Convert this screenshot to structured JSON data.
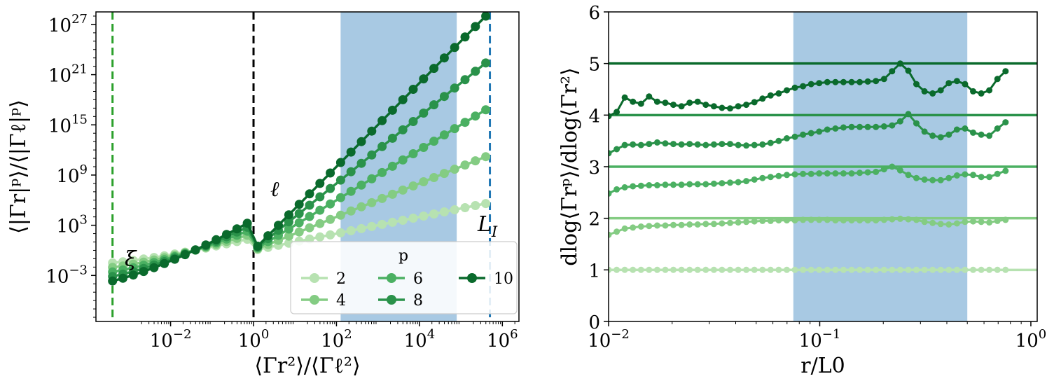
{
  "colors": {
    "p2": "#b7e2b1",
    "p4": "#84cc83",
    "p6": "#4bb062",
    "p8": "#2a924a",
    "p10": "#0a6a2c",
    "band": "#a8c9e3",
    "xi_line": "#2ca02c",
    "ell_line": "#000000",
    "LI_line": "#1f77b4"
  },
  "chart_data": [
    {
      "type": "line",
      "xscale": "log",
      "yscale": "log",
      "xlabel": "⟨Γr²⟩/⟨Γℓ²⟩",
      "ylabel": "⟨|Γr|ᵖ⟩/⟨|Γℓ|ᵖ⟩",
      "xlim_log10": [
        -3.8,
        6.4
      ],
      "ylim_log10": [
        -8.5,
        28.5
      ],
      "xtick_exponents": [
        -2,
        0,
        2,
        4,
        6
      ],
      "ytick_exponents": [
        -3,
        3,
        9,
        15,
        21,
        27
      ],
      "tick_base": "10",
      "shaded_x_log10": [
        2.1,
        4.9
      ],
      "vlines": [
        {
          "name": "xi",
          "x_log10": -3.4,
          "label": "ξ",
          "color": "#2ca02c"
        },
        {
          "name": "ell",
          "x_log10": 0,
          "label": "ℓ",
          "color": "#000000"
        },
        {
          "name": "LI",
          "x_log10": 5.7,
          "label": "L",
          "label_sub": "I",
          "color": "#1f77b4"
        }
      ],
      "legend": {
        "title": "p",
        "position": "lower-right-center",
        "entries": [
          "2",
          "4",
          "6",
          "8",
          "10"
        ]
      },
      "x_log10_range": [
        -3.4,
        5.7
      ],
      "x_log10_step": 0.25,
      "series": [
        {
          "name": "2",
          "p": 2,
          "slope_small": 0.55,
          "slope_large": 1.0
        },
        {
          "name": "4",
          "p": 4,
          "slope_small": 0.72,
          "slope_large": 2.0
        },
        {
          "name": "6",
          "p": 6,
          "slope_small": 0.86,
          "slope_large": 3.0
        },
        {
          "name": "8",
          "p": 8,
          "slope_small": 1.0,
          "slope_large": 4.0
        },
        {
          "name": "10",
          "p": 10,
          "slope_small": 1.14,
          "slope_large": 5.0
        }
      ]
    },
    {
      "type": "line",
      "xscale": "log",
      "xlabel": "r/L0",
      "ylabel": "dlog⟨Γrᵖ⟩/dlog⟨Γr²⟩",
      "xlim_log10": [
        -2,
        0.03
      ],
      "ylim": [
        0,
        6
      ],
      "xtick_exponents": [
        -2,
        -1,
        0
      ],
      "yticks": [
        0,
        1,
        2,
        3,
        4,
        5,
        6
      ],
      "shaded_x": [
        0.075,
        0.5
      ],
      "hlines": [
        1,
        2,
        3,
        4,
        5
      ],
      "x_log10_range": [
        -2,
        -0.12
      ],
      "series": [
        {
          "name": "2",
          "values": [
            1.0,
            1.0,
            1.0,
            1.0,
            1.0,
            1.0,
            1.0,
            1.0,
            1.0,
            1.0,
            1.0,
            1.0,
            1.0,
            1.0,
            1.0,
            1.0,
            1.0,
            1.0,
            1.0,
            1.0,
            1.0,
            1.0,
            1.0,
            1.0,
            1.0,
            1.0,
            1.0,
            1.0,
            1.0,
            1.0,
            1.0,
            1.0,
            1.0,
            1.0,
            1.0,
            1.0,
            1.0,
            1.0,
            1.0,
            1.0,
            1.0,
            1.0,
            1.0,
            1.0,
            1.0,
            1.0,
            1.0,
            1.0,
            1.0,
            1.0
          ]
        },
        {
          "name": "4",
          "values": [
            1.68,
            1.74,
            1.8,
            1.82,
            1.84,
            1.85,
            1.86,
            1.86,
            1.87,
            1.87,
            1.88,
            1.88,
            1.89,
            1.89,
            1.9,
            1.91,
            1.92,
            1.93,
            1.94,
            1.95,
            1.95,
            1.96,
            1.96,
            1.96,
            1.97,
            1.97,
            1.97,
            1.97,
            1.96,
            1.96,
            1.96,
            1.96,
            1.96,
            1.96,
            1.97,
            1.98,
            1.99,
            1.98,
            1.97,
            1.93,
            1.91,
            1.89,
            1.88,
            1.9,
            1.93,
            1.94,
            1.93,
            1.92,
            1.95,
            1.97
          ]
        },
        {
          "name": "6",
          "values": [
            2.48,
            2.56,
            2.6,
            2.62,
            2.63,
            2.64,
            2.64,
            2.65,
            2.65,
            2.65,
            2.66,
            2.66,
            2.66,
            2.67,
            2.68,
            2.69,
            2.7,
            2.72,
            2.75,
            2.78,
            2.8,
            2.82,
            2.84,
            2.85,
            2.86,
            2.86,
            2.87,
            2.87,
            2.87,
            2.87,
            2.87,
            2.88,
            2.89,
            2.9,
            2.95,
            3.0,
            2.93,
            2.84,
            2.78,
            2.75,
            2.74,
            2.74,
            2.78,
            2.83,
            2.85,
            2.84,
            2.8,
            2.8,
            2.86,
            2.92
          ]
        },
        {
          "name": "8",
          "values": [
            3.26,
            3.34,
            3.42,
            3.43,
            3.42,
            3.44,
            3.47,
            3.45,
            3.44,
            3.43,
            3.44,
            3.43,
            3.42,
            3.43,
            3.44,
            3.44,
            3.42,
            3.41,
            3.42,
            3.43,
            3.46,
            3.5,
            3.55,
            3.58,
            3.62,
            3.65,
            3.68,
            3.72,
            3.74,
            3.76,
            3.77,
            3.77,
            3.77,
            3.77,
            3.78,
            3.8,
            3.88,
            4.02,
            3.84,
            3.68,
            3.6,
            3.57,
            3.62,
            3.72,
            3.74,
            3.66,
            3.62,
            3.6,
            3.74,
            3.86
          ]
        },
        {
          "name": "10",
          "values": [
            3.98,
            4.06,
            4.34,
            4.26,
            4.22,
            4.36,
            4.26,
            4.24,
            4.2,
            4.17,
            4.24,
            4.26,
            4.2,
            4.17,
            4.14,
            4.13,
            4.17,
            4.2,
            4.25,
            4.32,
            4.38,
            4.42,
            4.48,
            4.53,
            4.56,
            4.6,
            4.62,
            4.64,
            4.64,
            4.64,
            4.64,
            4.64,
            4.65,
            4.66,
            4.7,
            4.85,
            5.0,
            4.86,
            4.6,
            4.46,
            4.42,
            4.48,
            4.62,
            4.66,
            4.6,
            4.46,
            4.42,
            4.48,
            4.7,
            4.85
          ]
        }
      ]
    }
  ]
}
